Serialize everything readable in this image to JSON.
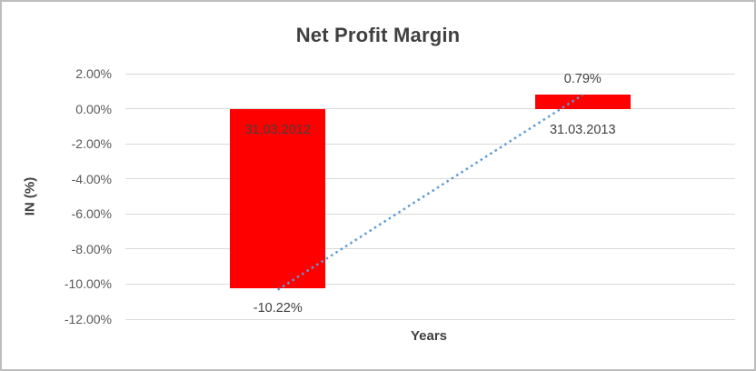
{
  "chart_data": {
    "type": "bar",
    "title": "Net Profit Margin",
    "xlabel": "Years",
    "ylabel": "IN (%)",
    "categories": [
      "31.03.2012",
      "31.03.2013"
    ],
    "values": [
      -10.22,
      0.79
    ],
    "value_labels": [
      "-10.22%",
      "0.79%"
    ],
    "ylim": [
      -12,
      2
    ],
    "yticks": [
      {
        "value": 2,
        "label": "2.00%"
      },
      {
        "value": 0,
        "label": "0.00%"
      },
      {
        "value": -2,
        "label": "-2.00%"
      },
      {
        "value": -4,
        "label": "-4.00%"
      },
      {
        "value": -6,
        "label": "-6.00%"
      },
      {
        "value": -8,
        "label": "-8.00%"
      },
      {
        "value": -10,
        "label": "-10.00%"
      },
      {
        "value": -12,
        "label": "-12.00%"
      }
    ],
    "grid": true,
    "legend": "none",
    "trendline": {
      "type": "linear",
      "style": "dotted",
      "color": "#5b9bd5",
      "from_point": [
        0,
        -10.22
      ],
      "to_point": [
        1,
        0.79
      ]
    },
    "colors": {
      "bar": "#ff0000",
      "grid": "#d9d9d9",
      "tick_text": "#595959",
      "title_text": "#404040",
      "label_text": "#404040"
    }
  }
}
